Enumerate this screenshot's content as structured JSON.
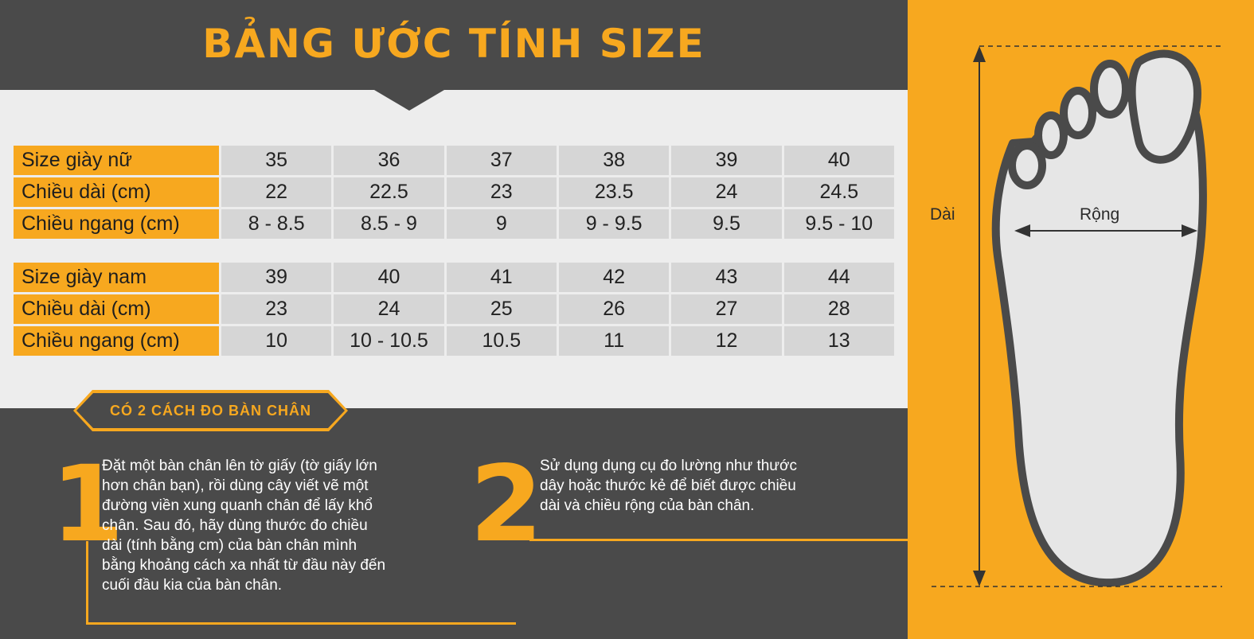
{
  "title": "BẢNG ƯỚC TÍNH SIZE",
  "women_table": {
    "rows": [
      {
        "label": "Size giày nữ",
        "values": [
          "35",
          "36",
          "37",
          "38",
          "39",
          "40"
        ]
      },
      {
        "label": "Chiều dài (cm)",
        "values": [
          "22",
          "22.5",
          "23",
          "23.5",
          "24",
          "24.5"
        ]
      },
      {
        "label": "Chiều ngang (cm)",
        "values": [
          "8 - 8.5",
          "8.5 - 9",
          "9",
          "9 - 9.5",
          "9.5",
          "9.5 - 10"
        ]
      }
    ]
  },
  "men_table": {
    "rows": [
      {
        "label": "Size giày nam",
        "values": [
          "39",
          "40",
          "41",
          "42",
          "43",
          "44"
        ]
      },
      {
        "label": "Chiều dài (cm)",
        "values": [
          "23",
          "24",
          "25",
          "26",
          "27",
          "28"
        ]
      },
      {
        "label": "Chiều ngang (cm)",
        "values": [
          "10",
          "10 - 10.5",
          "10.5",
          "11",
          "12",
          "13"
        ]
      }
    ]
  },
  "methods_badge": "CÓ 2 CÁCH ĐO BÀN CHÂN",
  "methods": [
    {
      "number": "1",
      "text": "Đặt một bàn chân lên tờ giấy (tờ giấy lớn hơn chân bạn), rồi dùng cây viết vẽ một đường viền xung quanh chân để lấy khổ chân. Sau đó, hãy dùng thước đo chiều dài (tính bằng cm) của bàn chân mình bằng khoảng cách xa nhất từ đầu này đến cuối đầu kia của bàn chân."
    },
    {
      "number": "2",
      "text": "Sử dụng dụng cụ đo lường như thước dây hoặc thước kẻ để biết được chiều dài và chiều rộng của bàn chân."
    }
  ],
  "foot_diagram": {
    "length_label": "Dài",
    "width_label": "Rộng"
  },
  "colors": {
    "accent": "#f7a81f",
    "dark": "#4a4a4a",
    "light": "#ededed",
    "cell": "#d6d6d6"
  }
}
